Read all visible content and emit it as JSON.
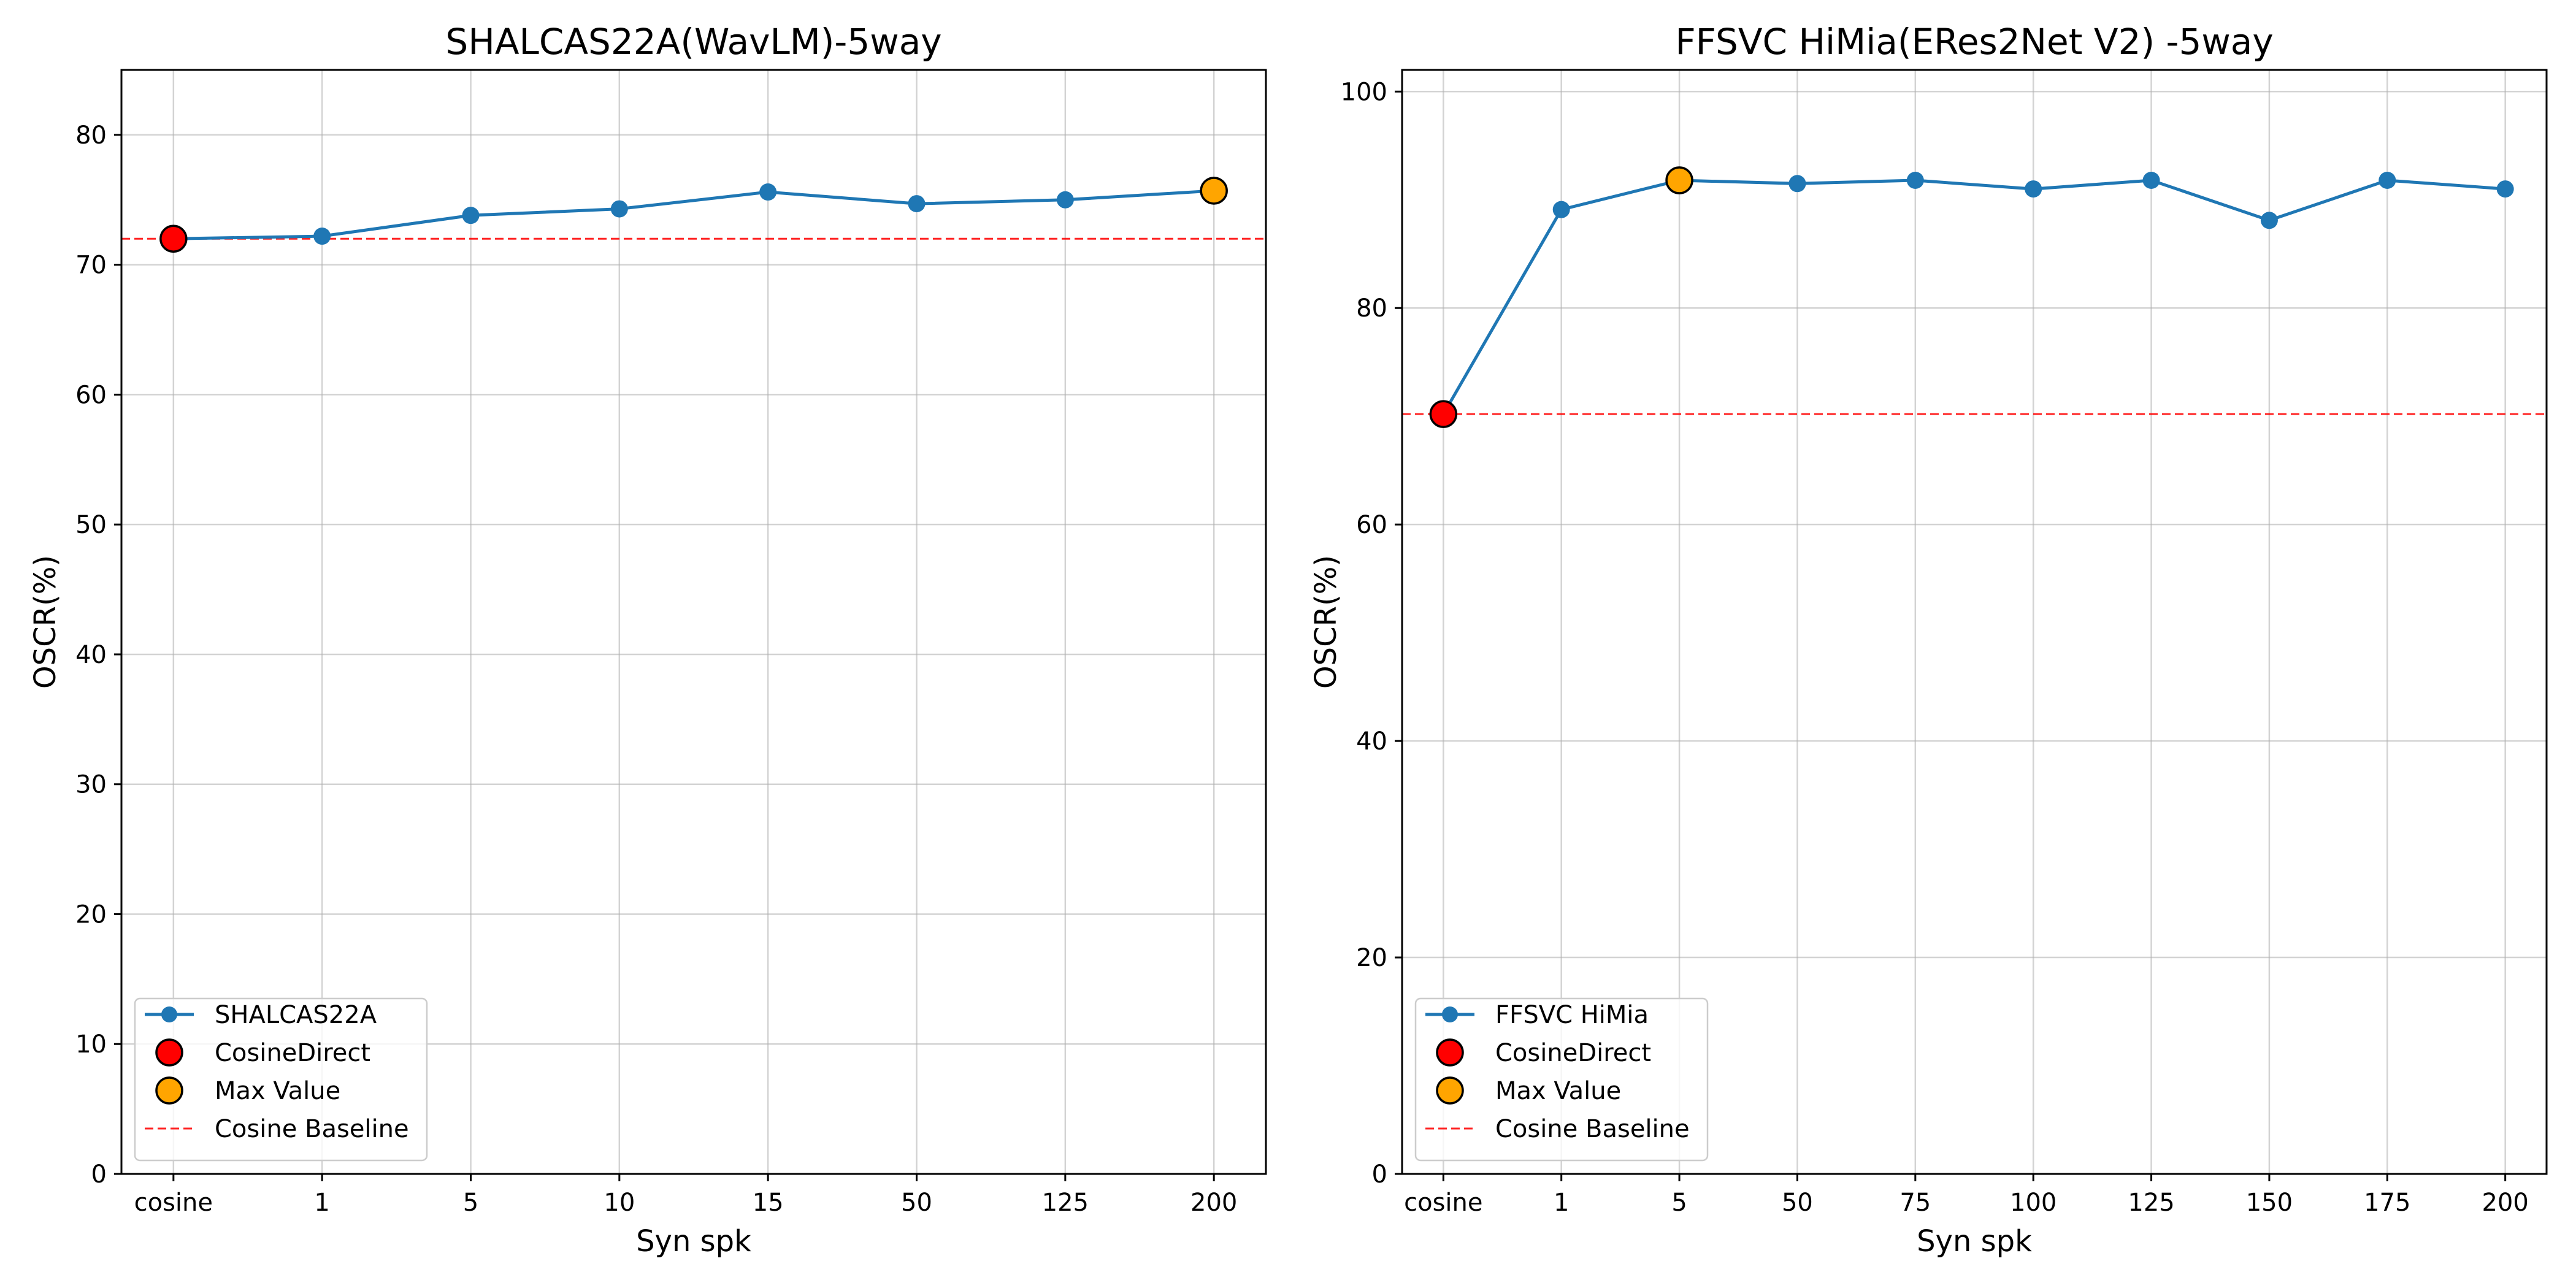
{
  "chart_data": [
    {
      "type": "line",
      "title": "SHALCAS22A(WavLM)-5way",
      "xlabel": "Syn spk",
      "ylabel": "OSCR(%)",
      "categories": [
        "cosine",
        "1",
        "5",
        "10",
        "15",
        "50",
        "125",
        "200"
      ],
      "ylim": [
        0,
        85
      ],
      "yticks": [
        0,
        10,
        20,
        30,
        40,
        50,
        60,
        70,
        80
      ],
      "grid": true,
      "legend_position": "lower-left",
      "series": [
        {
          "name": "SHALCAS22A",
          "color": "#1f77b4",
          "marker": "circle",
          "values": [
            72.0,
            72.2,
            73.8,
            74.3,
            75.6,
            74.7,
            75.0,
            75.7
          ]
        }
      ],
      "highlights": [
        {
          "name": "CosineDirect",
          "category": "cosine",
          "value": 72.0,
          "color": "#ff0000"
        },
        {
          "name": "Max Value",
          "category": "200",
          "value": 75.7,
          "color": "#ffa500"
        }
      ],
      "baseline": {
        "name": "Cosine Baseline",
        "value": 72.0,
        "color": "#ff0000",
        "style": "dashed"
      }
    },
    {
      "type": "line",
      "title": "FFSVC HiMia(ERes2Net V2) -5way",
      "xlabel": "Syn spk",
      "ylabel": "OSCR(%)",
      "categories": [
        "cosine",
        "1",
        "5",
        "50",
        "75",
        "100",
        "125",
        "150",
        "175",
        "200"
      ],
      "ylim": [
        0,
        102
      ],
      "yticks": [
        0,
        20,
        40,
        60,
        80,
        100
      ],
      "grid": true,
      "legend_position": "lower-left",
      "series": [
        {
          "name": "FFSVC HiMia",
          "color": "#1f77b4",
          "marker": "circle",
          "values": [
            70.2,
            89.1,
            91.8,
            91.5,
            91.8,
            91.0,
            91.8,
            88.1,
            91.8,
            91.0
          ]
        }
      ],
      "highlights": [
        {
          "name": "CosineDirect",
          "category": "cosine",
          "value": 70.2,
          "color": "#ff0000"
        },
        {
          "name": "Max Value",
          "category": "5",
          "value": 91.8,
          "color": "#ffa500"
        }
      ],
      "baseline": {
        "name": "Cosine Baseline",
        "value": 70.2,
        "color": "#ff0000",
        "style": "dashed"
      }
    }
  ]
}
